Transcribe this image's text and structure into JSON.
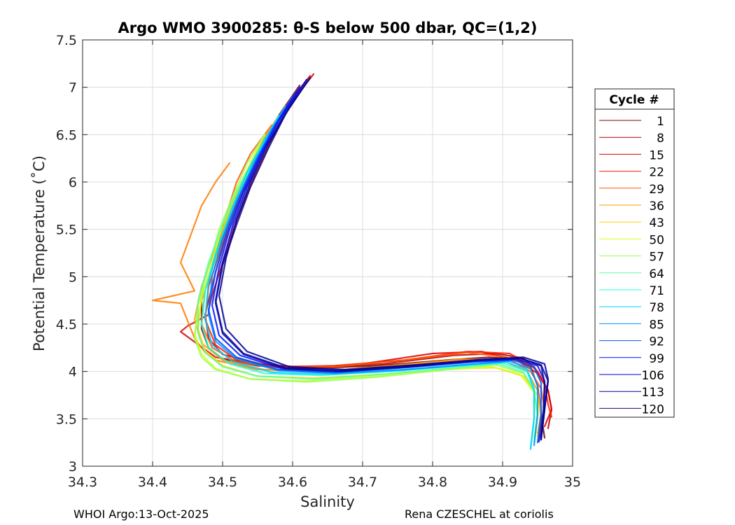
{
  "chart_data": {
    "type": "line",
    "title": "Argo WMO 3900285: θ-S below 500 dbar,  QC=(1,2)",
    "xlabel": "Salinity",
    "ylabel": "Potential Temperature (˚C)",
    "xlim": [
      34.3,
      35.0
    ],
    "ylim": [
      3.0,
      7.5
    ],
    "xticks": [
      "34.3",
      "34.4",
      "34.5",
      "34.6",
      "34.7",
      "34.8",
      "34.9",
      "35"
    ],
    "yticks": [
      "3",
      "3.5",
      "4",
      "4.5",
      "5",
      "5.5",
      "6",
      "6.5",
      "7",
      "7.5"
    ],
    "xtick_values": [
      34.3,
      34.4,
      34.5,
      34.6,
      34.7,
      34.8,
      34.9,
      35.0
    ],
    "ytick_values": [
      3.0,
      3.5,
      4.0,
      4.5,
      5.0,
      5.5,
      6.0,
      6.5,
      7.0,
      7.5
    ],
    "grid": true,
    "legend": {
      "title": "Cycle #",
      "placement": "right",
      "entries": [
        "1",
        "8",
        "15",
        "22",
        "29",
        "36",
        "43",
        "50",
        "57",
        "64",
        "71",
        "78",
        "85",
        "92",
        "99",
        "106",
        "113",
        "120"
      ],
      "colors": [
        "#800000",
        "#b40000",
        "#dc0000",
        "#ff1a00",
        "#ff5a00",
        "#ff9a00",
        "#ffd600",
        "#d8ff1c",
        "#98ff5c",
        "#5cff98",
        "#1cffd8",
        "#00d2ff",
        "#0090ff",
        "#0050ff",
        "#0010ff",
        "#0000d0",
        "#000090",
        "#0a0a8c"
      ]
    },
    "series": [
      {
        "color": "#800000",
        "x": [
          34.61,
          34.58,
          34.55,
          34.53,
          34.51,
          34.49,
          34.47,
          34.47,
          34.48,
          34.5,
          34.55,
          34.62,
          34.72,
          34.82,
          34.88,
          34.92,
          34.94,
          34.95,
          34.955,
          34.96
        ],
        "y": [
          7.02,
          6.7,
          6.3,
          5.95,
          5.6,
          5.2,
          4.75,
          4.45,
          4.25,
          4.13,
          4.06,
          4.03,
          4.06,
          4.12,
          4.15,
          4.13,
          4.05,
          3.85,
          3.55,
          3.3
        ]
      },
      {
        "color": "#b40000",
        "x": [
          34.625,
          34.59,
          34.56,
          34.535,
          34.51,
          34.49,
          34.475,
          34.48,
          34.5,
          34.56,
          34.63,
          34.73,
          34.83,
          34.89,
          34.93,
          34.95,
          34.965,
          34.97,
          34.965
        ],
        "y": [
          7.12,
          6.8,
          6.4,
          6.0,
          5.55,
          5.05,
          4.6,
          4.35,
          4.18,
          4.07,
          4.04,
          4.08,
          4.17,
          4.19,
          4.14,
          4.0,
          3.8,
          3.6,
          3.4
        ]
      },
      {
        "color": "#dc0000",
        "x": [
          34.63,
          34.6,
          34.57,
          34.545,
          34.52,
          34.5,
          34.485,
          34.48,
          34.48,
          34.45,
          34.44,
          34.49,
          34.55,
          34.62,
          34.7,
          34.8,
          34.87,
          34.92,
          34.95,
          34.965,
          34.97,
          34.96
        ],
        "y": [
          7.14,
          6.85,
          6.45,
          6.05,
          5.6,
          5.15,
          4.8,
          4.65,
          4.6,
          4.48,
          4.42,
          4.15,
          4.08,
          4.04,
          4.08,
          4.19,
          4.21,
          4.12,
          3.98,
          3.8,
          3.6,
          3.42
        ]
      },
      {
        "color": "#ff1a00",
        "x": [
          34.59,
          34.56,
          34.54,
          34.52,
          34.5,
          34.48,
          34.475,
          34.49,
          34.52,
          34.58,
          34.66,
          34.76,
          34.85,
          34.91,
          34.945,
          34.96,
          34.965,
          34.97
        ],
        "y": [
          6.8,
          6.45,
          6.1,
          5.75,
          5.35,
          4.9,
          4.55,
          4.28,
          4.12,
          4.05,
          4.06,
          4.12,
          4.21,
          4.19,
          4.05,
          3.88,
          3.65,
          3.52
        ]
      },
      {
        "color": "#ff5a00",
        "x": [
          34.57,
          34.54,
          34.52,
          34.505,
          34.49,
          34.475,
          34.47,
          34.485,
          34.52,
          34.58,
          34.66,
          34.76,
          34.85,
          34.905,
          34.94,
          34.955,
          34.96,
          34.955
        ],
        "y": [
          6.6,
          6.3,
          6.0,
          5.65,
          5.25,
          4.85,
          4.5,
          4.25,
          4.1,
          4.04,
          4.05,
          4.12,
          4.2,
          4.15,
          4.0,
          3.82,
          3.6,
          3.4
        ]
      },
      {
        "color": "#ff7a00",
        "x": [
          34.51,
          34.49,
          34.47,
          34.44,
          34.46,
          34.4,
          34.44,
          34.46,
          34.475,
          34.49,
          34.55,
          34.64,
          34.75,
          34.85,
          34.9
        ],
        "y": [
          6.2,
          6.0,
          5.75,
          5.15,
          4.85,
          4.75,
          4.72,
          4.35,
          4.2,
          4.12,
          4.02,
          4.0,
          4.05,
          4.12,
          4.1
        ]
      },
      {
        "color": "#ff9a00",
        "x": [
          34.58,
          34.55,
          34.53,
          34.51,
          34.49,
          34.47,
          34.46,
          34.47,
          34.5,
          34.56,
          34.64,
          34.74,
          34.84,
          34.9,
          34.935,
          34.95,
          34.955,
          34.95
        ],
        "y": [
          6.7,
          6.35,
          6.05,
          5.7,
          5.3,
          4.9,
          4.55,
          4.3,
          4.12,
          4.02,
          4.0,
          4.06,
          4.13,
          4.12,
          4.0,
          3.8,
          3.55,
          3.35
        ]
      },
      {
        "color": "#ffd600",
        "x": [
          34.57,
          34.545,
          34.525,
          34.505,
          34.49,
          34.47,
          34.465,
          34.475,
          34.5,
          34.55,
          34.63,
          34.73,
          34.83,
          34.89,
          34.93,
          34.95,
          34.955,
          34.95
        ],
        "y": [
          6.55,
          6.25,
          5.95,
          5.6,
          5.2,
          4.8,
          4.45,
          4.22,
          4.06,
          3.95,
          3.93,
          3.97,
          4.03,
          4.04,
          3.95,
          3.75,
          3.5,
          3.32
        ]
      },
      {
        "color": "#d8ff1c",
        "x": [
          34.56,
          34.54,
          34.52,
          34.5,
          34.485,
          34.47,
          34.46,
          34.47,
          34.49,
          34.54,
          34.62,
          34.72,
          34.82,
          34.885,
          34.925,
          34.945,
          34.95,
          34.945
        ],
        "y": [
          6.5,
          6.2,
          5.9,
          5.55,
          5.15,
          4.75,
          4.4,
          4.18,
          4.03,
          3.92,
          3.9,
          3.95,
          4.02,
          4.05,
          3.97,
          3.78,
          3.5,
          3.3
        ]
      },
      {
        "color": "#98ff5c",
        "x": [
          34.56,
          34.535,
          34.515,
          34.495,
          34.48,
          34.465,
          34.46,
          34.47,
          34.49,
          34.54,
          34.62,
          34.72,
          34.82,
          34.89,
          34.93,
          34.945,
          34.95,
          34.945
        ],
        "y": [
          6.5,
          6.2,
          5.85,
          5.5,
          5.1,
          4.7,
          4.35,
          4.15,
          4.02,
          3.92,
          3.89,
          3.94,
          4.02,
          4.07,
          3.98,
          3.8,
          3.55,
          3.3
        ]
      },
      {
        "color": "#5cff98",
        "x": [
          34.57,
          34.545,
          34.52,
          34.5,
          34.48,
          34.465,
          34.465,
          34.475,
          34.5,
          34.55,
          34.63,
          34.73,
          34.83,
          34.895,
          34.93,
          34.945,
          34.95,
          34.945
        ],
        "y": [
          6.55,
          6.25,
          5.9,
          5.55,
          5.15,
          4.75,
          4.4,
          4.2,
          4.05,
          3.95,
          3.92,
          3.97,
          4.04,
          4.08,
          3.99,
          3.8,
          3.55,
          3.25
        ]
      },
      {
        "color": "#1cffd8",
        "x": [
          34.58,
          34.555,
          34.53,
          34.51,
          34.49,
          34.475,
          34.47,
          34.48,
          34.51,
          34.56,
          34.64,
          34.74,
          34.84,
          34.9,
          34.935,
          34.945,
          34.945,
          34.94
        ],
        "y": [
          6.7,
          6.35,
          6.0,
          5.65,
          5.25,
          4.85,
          4.5,
          4.25,
          4.08,
          3.98,
          3.96,
          4.0,
          4.06,
          4.09,
          4.0,
          3.8,
          3.5,
          3.2
        ]
      },
      {
        "color": "#00d2ff",
        "x": [
          34.59,
          34.56,
          34.535,
          34.515,
          34.495,
          34.48,
          34.475,
          34.485,
          34.515,
          34.57,
          34.65,
          34.75,
          34.85,
          34.905,
          34.935,
          34.945,
          34.945,
          34.94
        ],
        "y": [
          6.8,
          6.45,
          6.1,
          5.75,
          5.35,
          4.95,
          4.55,
          4.28,
          4.1,
          3.99,
          3.97,
          4.01,
          4.07,
          4.1,
          4.02,
          3.82,
          3.5,
          3.18
        ]
      },
      {
        "color": "#0090ff",
        "x": [
          34.6,
          34.57,
          34.545,
          34.52,
          34.5,
          34.485,
          34.48,
          34.49,
          34.52,
          34.58,
          34.66,
          34.76,
          34.86,
          34.91,
          34.94,
          34.95,
          34.95,
          34.945
        ],
        "y": [
          6.9,
          6.55,
          6.2,
          5.8,
          5.4,
          5.0,
          4.6,
          4.32,
          4.13,
          4.01,
          3.98,
          4.02,
          4.08,
          4.11,
          4.03,
          3.85,
          3.55,
          3.22
        ]
      },
      {
        "color": "#0050ff",
        "x": [
          34.605,
          34.575,
          34.55,
          34.525,
          34.505,
          34.49,
          34.48,
          34.49,
          34.52,
          34.58,
          34.66,
          34.76,
          34.86,
          34.915,
          34.945,
          34.955,
          34.955,
          34.95
        ],
        "y": [
          6.95,
          6.6,
          6.25,
          5.85,
          5.45,
          5.05,
          4.65,
          4.35,
          4.15,
          4.02,
          3.99,
          4.04,
          4.1,
          4.12,
          4.05,
          3.88,
          3.55,
          3.25
        ]
      },
      {
        "color": "#0010ff",
        "x": [
          34.61,
          34.58,
          34.555,
          34.53,
          34.51,
          34.495,
          34.485,
          34.495,
          34.525,
          34.585,
          34.665,
          34.765,
          34.865,
          34.92,
          34.95,
          34.96,
          34.96,
          34.955
        ],
        "y": [
          7.0,
          6.65,
          6.3,
          5.9,
          5.5,
          5.1,
          4.7,
          4.38,
          4.17,
          4.03,
          4.0,
          4.05,
          4.11,
          4.13,
          4.06,
          3.9,
          3.6,
          3.28
        ]
      },
      {
        "color": "#0000d0",
        "x": [
          34.62,
          34.59,
          34.56,
          34.535,
          34.515,
          34.5,
          34.49,
          34.5,
          34.53,
          34.59,
          34.67,
          34.77,
          34.87,
          34.925,
          34.955,
          34.965,
          34.96,
          34.955
        ],
        "y": [
          7.08,
          6.75,
          6.35,
          5.95,
          5.55,
          5.15,
          4.75,
          4.42,
          4.19,
          4.04,
          4.01,
          4.06,
          4.12,
          4.14,
          4.07,
          3.9,
          3.6,
          3.28
        ]
      },
      {
        "color": "#000090",
        "x": [
          34.625,
          34.595,
          34.565,
          34.54,
          34.52,
          34.505,
          34.495,
          34.505,
          34.535,
          34.595,
          34.675,
          34.775,
          34.875,
          34.93,
          34.96,
          34.965,
          34.96,
          34.955
        ],
        "y": [
          7.1,
          6.78,
          6.4,
          6.0,
          5.6,
          5.2,
          4.8,
          4.45,
          4.21,
          4.05,
          4.02,
          4.07,
          4.13,
          4.15,
          4.08,
          3.92,
          3.6,
          3.3
        ]
      },
      {
        "color": "#0a0a8c",
        "x": [
          34.62,
          34.59,
          34.565,
          34.54,
          34.52,
          34.5,
          34.49,
          34.5,
          34.53,
          34.59,
          34.67,
          34.77,
          34.87,
          34.925,
          34.955,
          34.96,
          34.958,
          34.952
        ],
        "y": [
          7.05,
          6.72,
          6.35,
          5.95,
          5.55,
          5.12,
          4.72,
          4.4,
          4.18,
          4.03,
          4.0,
          4.05,
          4.12,
          4.14,
          4.06,
          3.88,
          3.58,
          3.26
        ]
      }
    ]
  },
  "footer": {
    "left": "WHOI Argo:13-Oct-2025",
    "right": "Rena CZESCHEL at coriolis"
  }
}
